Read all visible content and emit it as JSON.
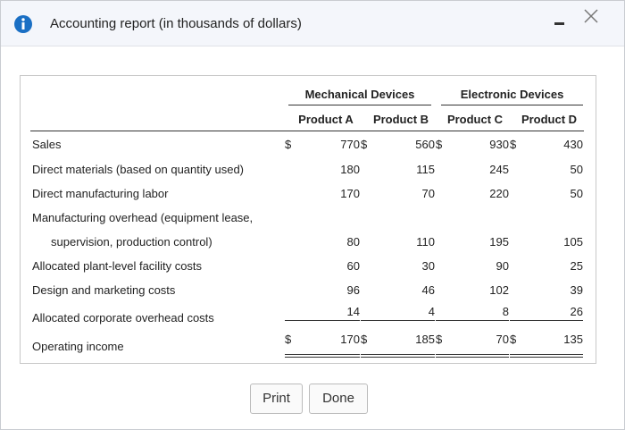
{
  "header": {
    "title": "Accounting report (in thousands of dollars)"
  },
  "table": {
    "group_headers": [
      "Mechanical Devices",
      "Electronic Devices"
    ],
    "columns": [
      "Product A",
      "Product B",
      "Product C",
      "Product D"
    ],
    "rows": [
      {
        "label": "Sales",
        "prefix": "$",
        "values": [
          770,
          560,
          930,
          430
        ]
      },
      {
        "label": "Direct materials (based on quantity used)",
        "values": [
          180,
          115,
          245,
          50
        ]
      },
      {
        "label": "Direct manufacturing labor",
        "values": [
          170,
          70,
          220,
          50
        ]
      },
      {
        "label": "Manufacturing overhead (equipment lease,",
        "label_2": "supervision, production control)",
        "values": [
          80,
          110,
          195,
          105
        ]
      },
      {
        "label": "Allocated plant-level facility costs",
        "values": [
          60,
          30,
          90,
          25
        ]
      },
      {
        "label": "Design and marketing costs",
        "values": [
          96,
          46,
          102,
          39
        ]
      },
      {
        "label": "Allocated corporate overhead costs",
        "values": [
          14,
          4,
          8,
          26
        ]
      },
      {
        "label": "Operating income",
        "prefix": "$",
        "values": [
          170,
          185,
          70,
          135
        ]
      }
    ]
  },
  "buttons": [
    "Print",
    "Done"
  ]
}
